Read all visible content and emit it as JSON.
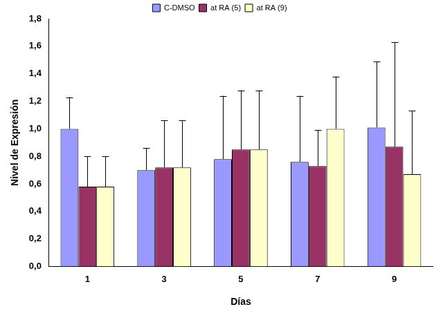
{
  "chart_data": {
    "type": "bar",
    "x_label": "Días",
    "y_label": "Nivel de Expresión",
    "categories": [
      "1",
      "3",
      "5",
      "7",
      "9"
    ],
    "series": [
      {
        "name": "C-DMSO",
        "color": "#9999ff",
        "values": [
          1.0,
          0.7,
          0.78,
          0.76,
          1.01
        ],
        "errors": [
          0.23,
          0.16,
          0.46,
          0.48,
          0.48
        ]
      },
      {
        "name": "at RA (5)",
        "color": "#993366",
        "values": [
          0.58,
          0.72,
          0.85,
          0.73,
          0.87
        ],
        "errors": [
          0.22,
          0.34,
          0.43,
          0.26,
          0.76
        ]
      },
      {
        "name": "at RA (9)",
        "color": "#ffffcc",
        "values": [
          0.58,
          0.72,
          0.85,
          1.0,
          0.67
        ],
        "errors": [
          0.22,
          0.34,
          0.43,
          0.38,
          0.46
        ]
      }
    ],
    "ylim": [
      0,
      1.8
    ],
    "yticks": [
      {
        "value": 0,
        "label": "0,0"
      },
      {
        "value": 0.2,
        "label": "0,2"
      },
      {
        "value": 0.4,
        "label": "0,4"
      },
      {
        "value": 0.6,
        "label": "0,6"
      },
      {
        "value": 0.8,
        "label": "0,8"
      },
      {
        "value": 1.0,
        "label": "1,0"
      },
      {
        "value": 1.2,
        "label": "1,2"
      },
      {
        "value": 1.4,
        "label": "1,4"
      },
      {
        "value": 1.6,
        "label": "1,6"
      },
      {
        "value": 1.8,
        "label": "1,8"
      }
    ],
    "grid": false,
    "legend": "top"
  }
}
